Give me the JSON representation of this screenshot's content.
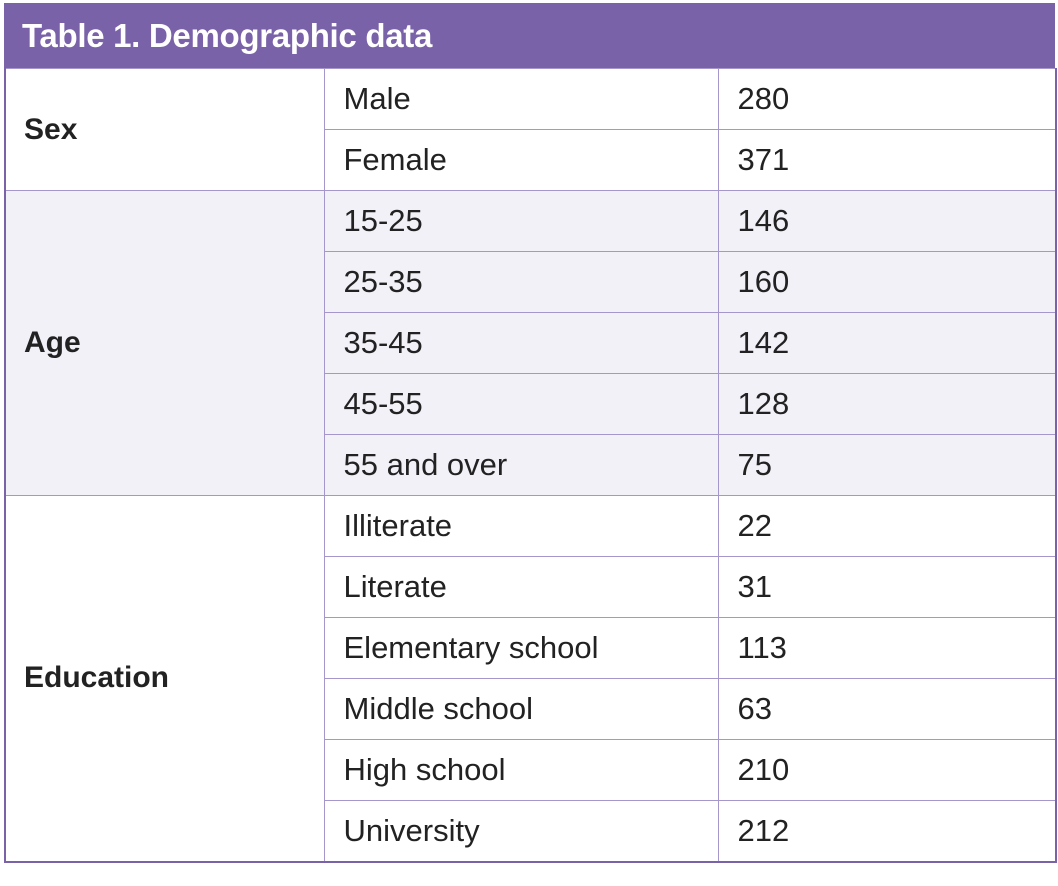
{
  "table": {
    "title": "Table 1. Demographic data",
    "groups": [
      {
        "label": "Sex",
        "rows": [
          {
            "label": "Male",
            "value": 280
          },
          {
            "label": "Female",
            "value": 371
          }
        ]
      },
      {
        "label": "Age",
        "rows": [
          {
            "label": "15-25",
            "value": 146
          },
          {
            "label": "25-35",
            "value": 160
          },
          {
            "label": "35-45",
            "value": 142
          },
          {
            "label": "45-55",
            "value": 128
          },
          {
            "label": "55 and over",
            "value": 75
          }
        ]
      },
      {
        "label": "Education",
        "rows": [
          {
            "label": "Illiterate",
            "value": 22
          },
          {
            "label": "Literate",
            "value": 31
          },
          {
            "label": "Elementary school",
            "value": 113
          },
          {
            "label": "Middle school",
            "value": 63
          },
          {
            "label": "High school",
            "value": 210
          },
          {
            "label": "University",
            "value": 212
          }
        ]
      }
    ]
  }
}
